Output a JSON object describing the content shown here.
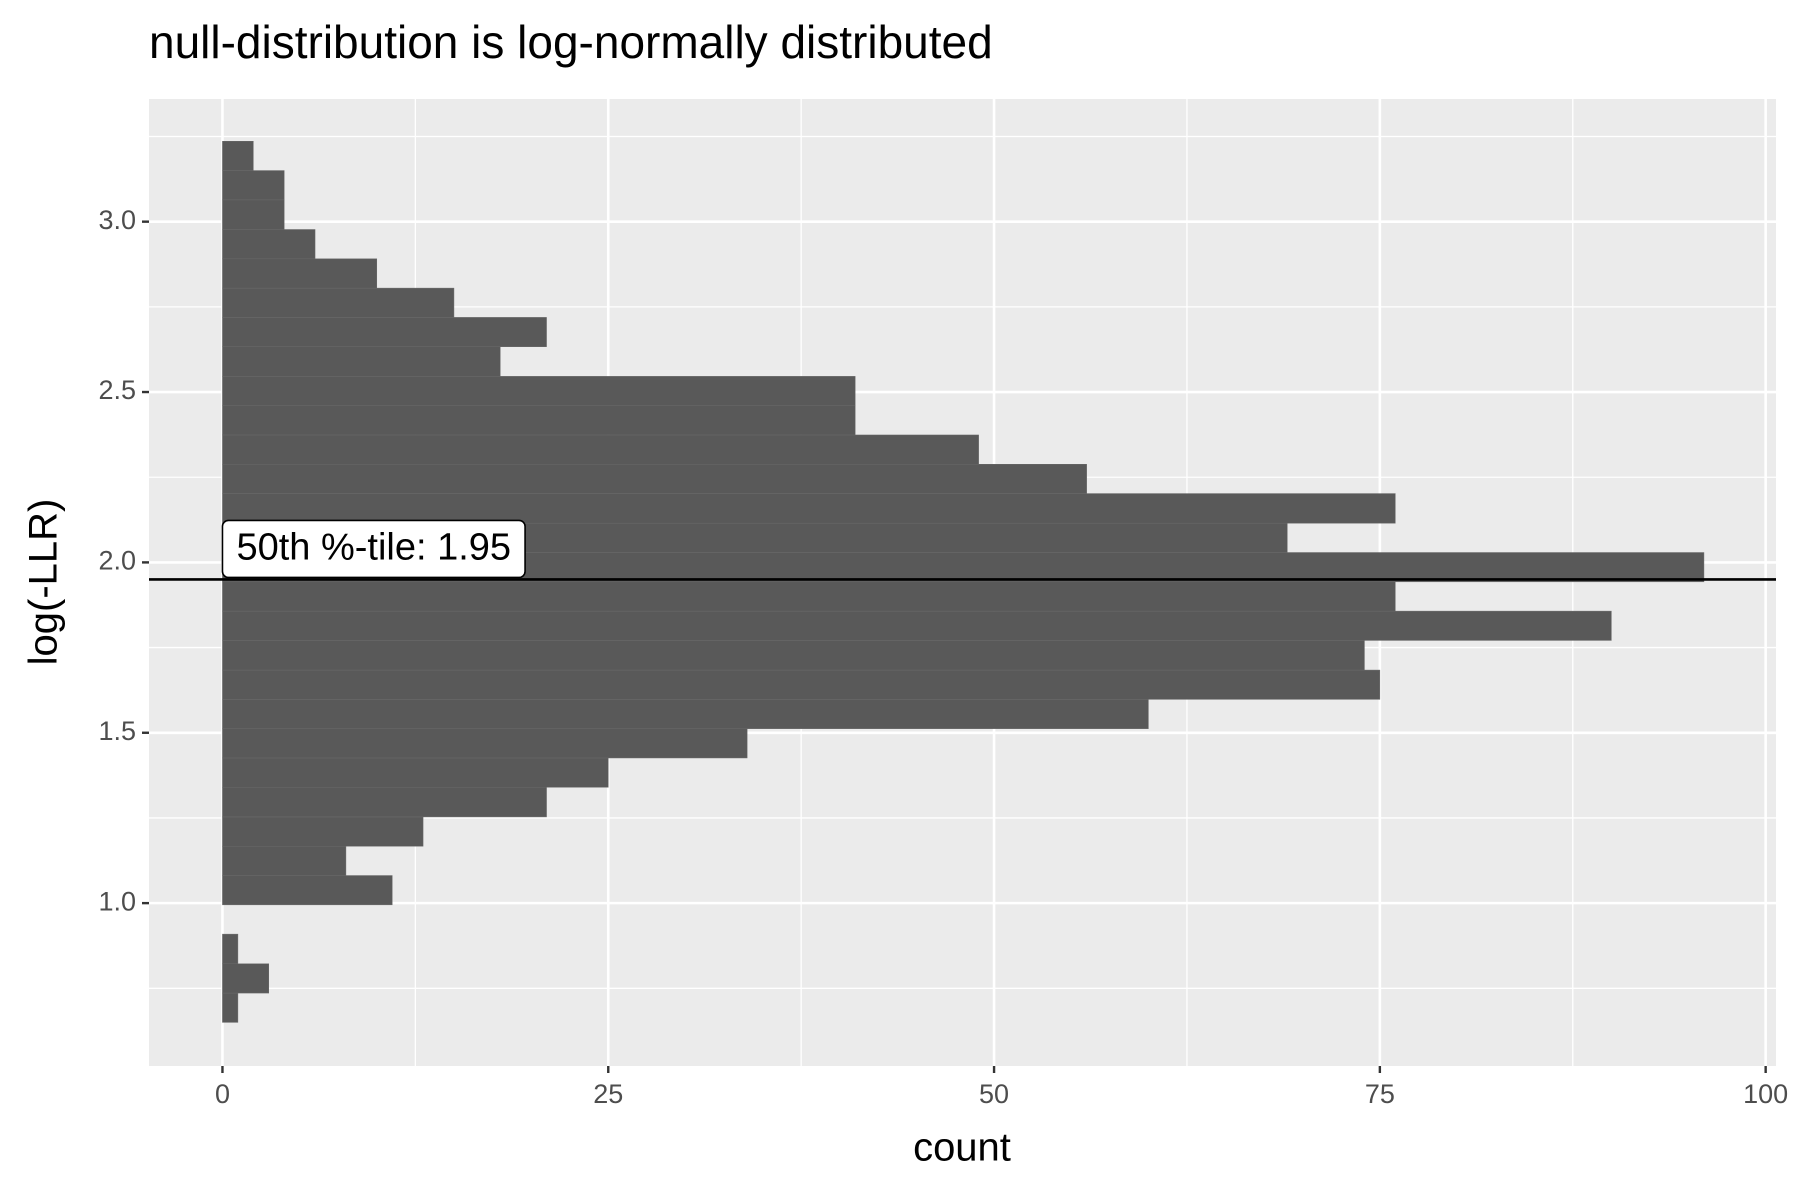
{
  "chart_data": {
    "type": "histogram",
    "orientation": "horizontal",
    "title": "null-distribution is log-normally distributed",
    "x_label": "count",
    "y_label": "log(-LLR)",
    "bins": [
      0.65,
      0.736,
      0.822,
      0.909,
      0.995,
      1.081,
      1.167,
      1.253,
      1.34,
      1.426,
      1.512,
      1.598,
      1.684,
      1.771,
      1.857,
      1.943,
      2.029,
      2.115,
      2.202,
      2.288,
      2.374,
      2.46,
      2.546,
      2.633,
      2.719,
      2.805,
      2.891,
      2.977,
      3.064,
      3.15,
      3.236
    ],
    "values": [
      1,
      3,
      1,
      0,
      11,
      8,
      13,
      21,
      25,
      34,
      60,
      75,
      74,
      90,
      76,
      96,
      69,
      76,
      56,
      49,
      41,
      41,
      18,
      21,
      15,
      10,
      6,
      4,
      4,
      2
    ],
    "color": "#595959",
    "xlim": [
      -4.76,
      100.67
    ],
    "xticks": [
      0,
      25,
      50,
      75,
      100
    ],
    "ylim": [
      0.522,
      3.36
    ],
    "yticks": [
      {
        "value": 1,
        "label": "1.0"
      },
      1.5,
      {
        "value": 2,
        "label": "2.0"
      },
      2.5,
      {
        "value": 3,
        "label": "3.0"
      }
    ],
    "grid": true,
    "hline": {
      "y": 1.95,
      "label": "50th %-tile: 1.95"
    }
  }
}
